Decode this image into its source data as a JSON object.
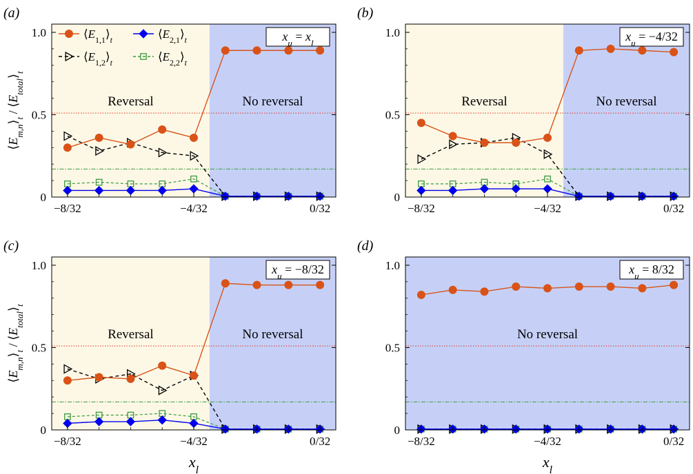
{
  "figure": {
    "xlabel_main": "x",
    "xlabel_sub": "l",
    "ylabel": "⟨E_{m,n}⟩_t / ⟨E_total⟩_t",
    "ylim": [
      0,
      1.05
    ],
    "yticks": [
      0,
      0.5,
      1.0
    ],
    "ytick_labels": [
      "0",
      "0.5",
      "1.0"
    ],
    "xticks": [
      -8,
      -4,
      0
    ],
    "xtick_labels": [
      "−8/32",
      "−4/32",
      "0/32"
    ],
    "x_points": [
      -8,
      -7,
      -6,
      -5,
      -4,
      -3,
      -2,
      -1,
      0
    ],
    "region_labels": {
      "reversal": "Reversal",
      "no_reversal": "No reversal"
    },
    "reference_lines": {
      "red_dotted": 0.51,
      "green_dashdot": 0.17
    },
    "colors": {
      "E11": "#d95319",
      "E21": "#0000ee",
      "E12": "#000000",
      "E22": "#3a9a3a",
      "reversal_bg": "#fdf8e6",
      "no_reversal_bg": "#c6d0f7",
      "ref_red": "#e03020",
      "ref_green": "#3a9a3a"
    },
    "legend": [
      {
        "key": "E11",
        "label": "⟨E1,1⟩t",
        "marker": "circle"
      },
      {
        "key": "E21",
        "label": "⟨E2,1⟩t",
        "marker": "diamond"
      },
      {
        "key": "E12",
        "label": "⟨E1,2⟩t",
        "marker": "triangle-right"
      },
      {
        "key": "E22",
        "label": "⟨E2,2⟩t",
        "marker": "square"
      }
    ]
  },
  "chart_data": [
    {
      "type": "line",
      "panel_label": "(a)",
      "annotation": "x_u = x_l",
      "reversal_region": [
        -8.5,
        -3.5
      ],
      "no_reversal_region": [
        -3.5,
        0.5
      ],
      "show_legend": true,
      "x": [
        -8,
        -7,
        -6,
        -5,
        -4,
        -3,
        -2,
        -1,
        0
      ],
      "series": [
        {
          "name": "⟨E1,1⟩t",
          "key": "E11",
          "values": [
            0.3,
            0.36,
            0.32,
            0.41,
            0.36,
            0.89,
            0.89,
            0.89,
            0.89
          ]
        },
        {
          "name": "⟨E2,1⟩t",
          "key": "E21",
          "values": [
            0.04,
            0.04,
            0.04,
            0.04,
            0.05,
            0.005,
            0.005,
            0.005,
            0.005
          ]
        },
        {
          "name": "⟨E1,2⟩t",
          "key": "E12",
          "values": [
            0.37,
            0.28,
            0.33,
            0.27,
            0.25,
            0.005,
            0.005,
            0.005,
            0.005
          ]
        },
        {
          "name": "⟨E2,2⟩t",
          "key": "E22",
          "values": [
            0.08,
            0.09,
            0.08,
            0.08,
            0.11,
            0.005,
            0.005,
            0.005,
            0.005
          ]
        }
      ]
    },
    {
      "type": "line",
      "panel_label": "(b)",
      "annotation": "x_u = −4/32",
      "reversal_region": [
        -8.5,
        -3.5
      ],
      "no_reversal_region": [
        -3.5,
        0.5
      ],
      "show_legend": false,
      "x": [
        -8,
        -7,
        -6,
        -5,
        -4,
        -3,
        -2,
        -1,
        0
      ],
      "series": [
        {
          "name": "⟨E1,1⟩t",
          "key": "E11",
          "values": [
            0.45,
            0.37,
            0.33,
            0.33,
            0.36,
            0.89,
            0.9,
            0.89,
            0.88
          ]
        },
        {
          "name": "⟨E2,1⟩t",
          "key": "E21",
          "values": [
            0.04,
            0.04,
            0.05,
            0.05,
            0.05,
            0.005,
            0.005,
            0.005,
            0.005
          ]
        },
        {
          "name": "⟨E1,2⟩t",
          "key": "E12",
          "values": [
            0.23,
            0.32,
            0.33,
            0.36,
            0.26,
            0.005,
            0.005,
            0.005,
            0.005
          ]
        },
        {
          "name": "⟨E2,2⟩t",
          "key": "E22",
          "values": [
            0.08,
            0.08,
            0.09,
            0.08,
            0.11,
            0.005,
            0.005,
            0.005,
            0.005
          ]
        }
      ]
    },
    {
      "type": "line",
      "panel_label": "(c)",
      "annotation": "x_u = −8/32",
      "reversal_region": [
        -8.5,
        -3.5
      ],
      "no_reversal_region": [
        -3.5,
        0.5
      ],
      "show_legend": false,
      "x": [
        -8,
        -7,
        -6,
        -5,
        -4,
        -3,
        -2,
        -1,
        0
      ],
      "series": [
        {
          "name": "⟨E1,1⟩t",
          "key": "E11",
          "values": [
            0.3,
            0.32,
            0.31,
            0.39,
            0.33,
            0.89,
            0.88,
            0.88,
            0.88
          ]
        },
        {
          "name": "⟨E2,1⟩t",
          "key": "E21",
          "values": [
            0.04,
            0.05,
            0.05,
            0.06,
            0.04,
            0.005,
            0.005,
            0.005,
            0.005
          ]
        },
        {
          "name": "⟨E1,2⟩t",
          "key": "E12",
          "values": [
            0.37,
            0.31,
            0.34,
            0.24,
            0.33,
            0.005,
            0.005,
            0.005,
            0.005
          ]
        },
        {
          "name": "⟨E2,2⟩t",
          "key": "E22",
          "values": [
            0.08,
            0.09,
            0.09,
            0.1,
            0.08,
            0.005,
            0.005,
            0.005,
            0.005
          ]
        }
      ]
    },
    {
      "type": "line",
      "panel_label": "(d)",
      "annotation": "x_u = 8/32",
      "reversal_region": null,
      "no_reversal_region": [
        -8.5,
        0.5
      ],
      "show_legend": false,
      "x": [
        -8,
        -7,
        -6,
        -5,
        -4,
        -3,
        -2,
        -1,
        0
      ],
      "series": [
        {
          "name": "⟨E1,1⟩t",
          "key": "E11",
          "values": [
            0.82,
            0.85,
            0.84,
            0.87,
            0.86,
            0.87,
            0.87,
            0.86,
            0.88
          ]
        },
        {
          "name": "⟨E2,1⟩t",
          "key": "E21",
          "values": [
            0.005,
            0.005,
            0.005,
            0.005,
            0.005,
            0.005,
            0.005,
            0.005,
            0.005
          ]
        },
        {
          "name": "⟨E1,2⟩t",
          "key": "E12",
          "values": [
            0.005,
            0.005,
            0.005,
            0.005,
            0.005,
            0.005,
            0.005,
            0.005,
            0.005
          ]
        },
        {
          "name": "⟨E2,2⟩t",
          "key": "E22",
          "values": [
            0.005,
            0.005,
            0.005,
            0.005,
            0.005,
            0.005,
            0.005,
            0.005,
            0.005
          ]
        }
      ]
    }
  ]
}
